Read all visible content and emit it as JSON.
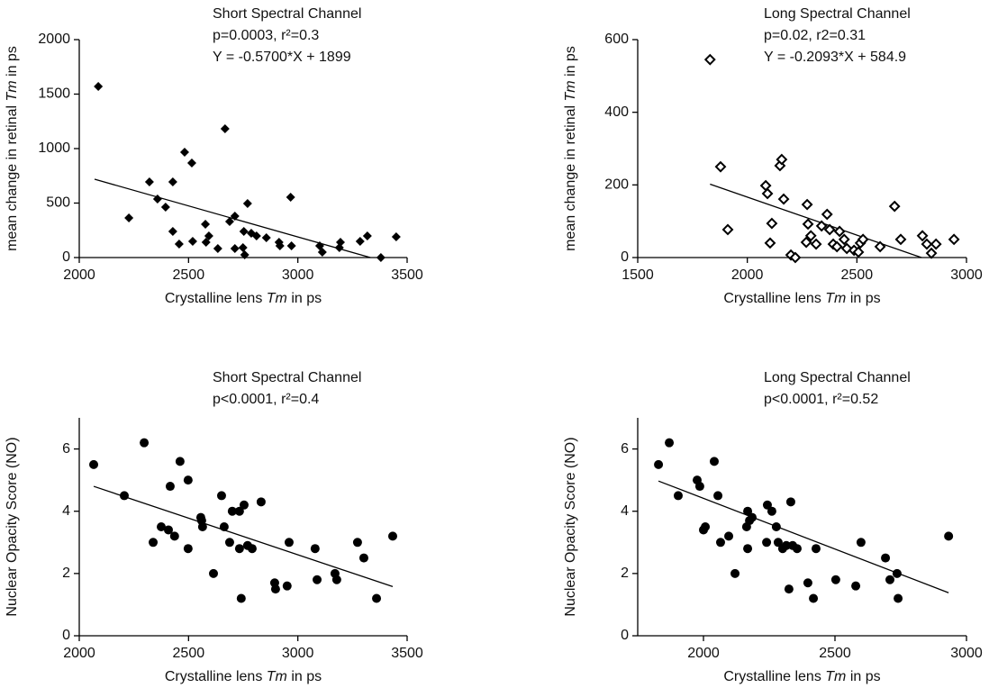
{
  "chart_data": [
    {
      "type": "scatter",
      "marker": "diamond",
      "color": "#000000",
      "title": [
        "Short Spectral Channel",
        "p=0.0003, r²=0.3",
        "Y = -0.5700*X + 1899"
      ],
      "xlabel": [
        "Crystalline lens ",
        "Tm",
        " in ps"
      ],
      "ylabel": [
        "mean change in retinal ",
        "Tm",
        " in ps"
      ],
      "xlim": [
        2000,
        3500
      ],
      "xticks": [
        2000,
        2500,
        3000,
        3500
      ],
      "ylim": [
        0,
        2000
      ],
      "yticks": [
        0,
        500,
        1000,
        1500,
        2000
      ],
      "x": [
        2087,
        2227,
        2321,
        2358,
        2395,
        2428,
        2428,
        2457,
        2482,
        2515,
        2519,
        2577,
        2580,
        2593,
        2634,
        2667,
        2688,
        2712,
        2712,
        2753,
        2749,
        2757,
        2770,
        2787,
        2811,
        2856,
        2914,
        2918,
        2971,
        2967,
        3100,
        3112,
        3190,
        3195,
        3285,
        3318,
        3380,
        3450
      ],
      "y": [
        1570,
        364,
        694,
        537,
        463,
        694,
        240,
        124,
        967,
        868,
        149,
        306,
        140,
        198,
        83,
        1182,
        331,
        380,
        83,
        240,
        91,
        25,
        496,
        223,
        198,
        182,
        140,
        107,
        107,
        554,
        107,
        50,
        91,
        140,
        149,
        198,
        0,
        190
      ],
      "trend": {
        "x": [
          2070,
          3332
        ],
        "y": [
          719,
          0
        ]
      }
    },
    {
      "type": "scatter",
      "marker": "diamond-open",
      "color": "#000000",
      "title": [
        "Long Spectral Channel",
        "p=0.02, r2=0.31",
        "Y = -0.2093*X + 584.9"
      ],
      "xlabel": [
        "Crystalline lens ",
        "Tm",
        " in ps"
      ],
      "ylabel": [
        "mean change in retinal ",
        "Tm",
        " in ps"
      ],
      "xlim": [
        1500,
        3000
      ],
      "xticks": [
        1500,
        2000,
        2500,
        3000
      ],
      "ylim": [
        0,
        600
      ],
      "yticks": [
        0,
        200,
        400,
        600
      ],
      "x": [
        1830,
        1878,
        1911,
        2084,
        2092,
        2112,
        2104,
        2149,
        2157,
        2166,
        2199,
        2219,
        2273,
        2277,
        2269,
        2290,
        2314,
        2339,
        2364,
        2376,
        2392,
        2409,
        2421,
        2442,
        2454,
        2487,
        2516,
        2528,
        2507,
        2606,
        2672,
        2700,
        2799,
        2819,
        2840,
        2861,
        2943
      ],
      "y": [
        545,
        250,
        77,
        198,
        176,
        94,
        40,
        253,
        270,
        161,
        7,
        0,
        146,
        92,
        42,
        60,
        37,
        87,
        119,
        77,
        37,
        30,
        72,
        50,
        25,
        20,
        40,
        50,
        15,
        30,
        141,
        50,
        60,
        37,
        12,
        37,
        50
      ],
      "trend": {
        "x": [
          1830,
          2795
        ],
        "y": [
          202,
          0
        ]
      }
    },
    {
      "type": "scatter",
      "marker": "circle",
      "color": "#000000",
      "title": [
        "Short Spectral Channel",
        "p<0.0001, r²=0.4"
      ],
      "xlabel": [
        "Crystalline lens ",
        "Tm",
        " in ps"
      ],
      "ylabel": "Nuclear Opacity Score (NO)",
      "xlim": [
        2000,
        3500
      ],
      "xticks": [
        2000,
        2500,
        3000,
        3500
      ],
      "ylim": [
        0,
        7
      ],
      "yticks": [
        0,
        2,
        4,
        6
      ],
      "x": [
        2066,
        2206,
        2297,
        2338,
        2375,
        2408,
        2416,
        2436,
        2461,
        2498,
        2498,
        2556,
        2560,
        2564,
        2614,
        2651,
        2663,
        2688,
        2700,
        2733,
        2733,
        2754,
        2741,
        2770,
        2791,
        2832,
        2894,
        2898,
        2951,
        2960,
        3079,
        3088,
        3170,
        3178,
        3273,
        3302,
        3360,
        3434
      ],
      "y": [
        5.5,
        4.5,
        6.2,
        3,
        3.5,
        3.4,
        4.8,
        3.2,
        5.6,
        5,
        2.8,
        3.8,
        3.7,
        3.5,
        2,
        4.5,
        3.5,
        3,
        4,
        4,
        2.8,
        4.2,
        1.2,
        2.9,
        2.8,
        4.3,
        1.7,
        1.5,
        1.6,
        3,
        2.8,
        1.8,
        2,
        1.8,
        3,
        2.5,
        1.2,
        3.2
      ],
      "trend": {
        "x": [
          2066,
          3434
        ],
        "y": [
          4.8,
          1.58
        ]
      }
    },
    {
      "type": "scatter",
      "marker": "circle",
      "color": "#000000",
      "title": [
        "Long Spectral Channel",
        "p<0.0001, r²=0.52"
      ],
      "xlabel": [
        "Crystalline lens ",
        "Tm",
        " in ps"
      ],
      "ylabel": "Nuclear Opacity Score (NO)",
      "xlim": [
        1750,
        3000
      ],
      "xticks": [
        2000,
        2500,
        3000
      ],
      "ylim": [
        0,
        7
      ],
      "yticks": [
        0,
        2,
        4,
        6
      ],
      "x": [
        1829,
        1870,
        1904,
        1976,
        1986,
        2000,
        2007,
        2041,
        2055,
        2065,
        2096,
        2120,
        2164,
        2168,
        2175,
        2168,
        2185,
        2243,
        2260,
        2240,
        2277,
        2284,
        2301,
        2315,
        2332,
        2325,
        2339,
        2356,
        2397,
        2418,
        2428,
        2503,
        2579,
        2599,
        2692,
        2709,
        2736,
        2740,
        2932
      ],
      "y": [
        5.5,
        6.2,
        4.5,
        5,
        4.8,
        3.4,
        3.5,
        5.6,
        4.5,
        3,
        3.2,
        2,
        3.5,
        4,
        3.7,
        2.8,
        3.8,
        4.2,
        4,
        3,
        3.5,
        3,
        2.8,
        2.9,
        4.3,
        1.5,
        2.9,
        2.8,
        1.7,
        1.2,
        2.8,
        1.8,
        1.6,
        3,
        2.5,
        1.8,
        2,
        1.2,
        3.2
      ],
      "trend": {
        "x": [
          1829,
          2932
        ],
        "y": [
          4.97,
          1.38
        ]
      }
    }
  ]
}
